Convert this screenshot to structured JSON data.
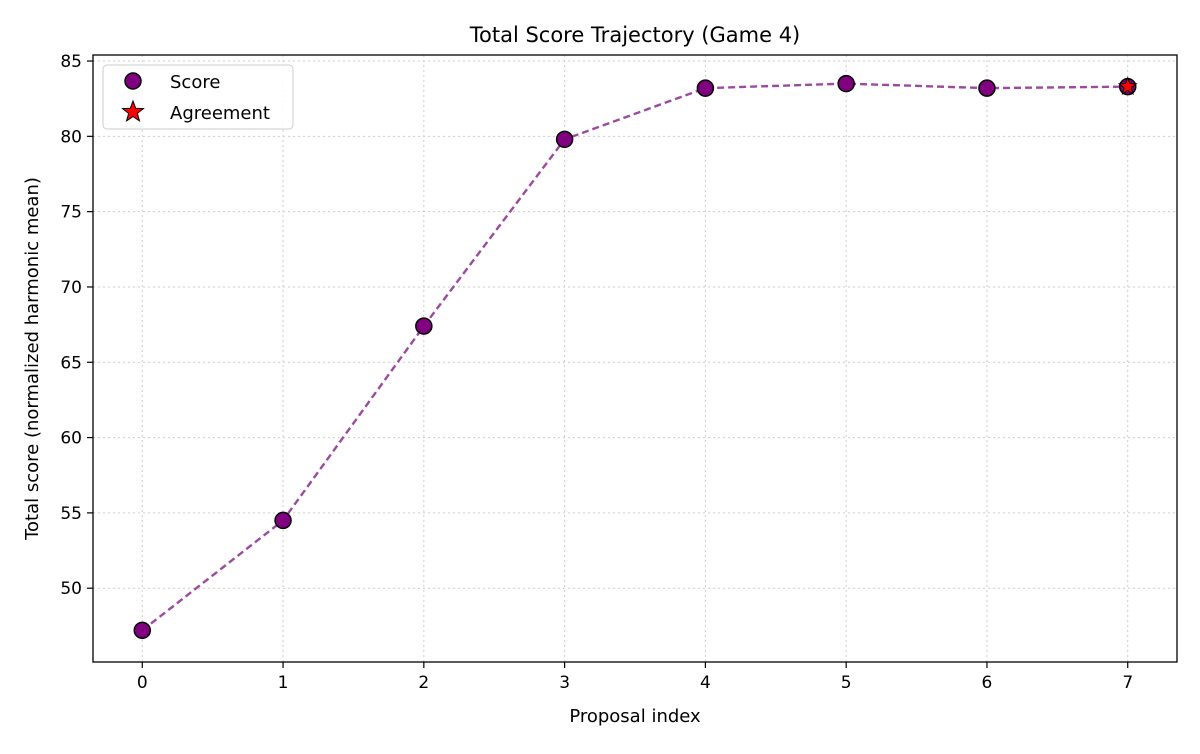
{
  "chart_data": {
    "type": "line",
    "title": "Total Score Trajectory (Game 4)",
    "xlabel": "Proposal index",
    "ylabel": "Total score (normalized harmonic mean)",
    "xlim": [
      -0.35,
      7.35
    ],
    "ylim": [
      45.1,
      85.4
    ],
    "xticks": [
      0,
      1,
      2,
      3,
      4,
      5,
      6,
      7
    ],
    "yticks": [
      50,
      55,
      60,
      65,
      70,
      75,
      80,
      85
    ],
    "grid": true,
    "legend_position": "top-left",
    "series": [
      {
        "name": "Score",
        "style": "dashed line with circle markers",
        "line_color": "#9b4a9f",
        "marker_color": "#800080",
        "x": [
          0,
          1,
          2,
          3,
          4,
          5,
          6,
          7
        ],
        "values": [
          47.2,
          54.5,
          67.4,
          79.8,
          83.2,
          83.5,
          83.2,
          83.3
        ]
      },
      {
        "name": "Agreement",
        "style": "star marker",
        "marker_color": "#ff0000",
        "x": [
          7
        ],
        "values": [
          83.3
        ]
      }
    ]
  }
}
